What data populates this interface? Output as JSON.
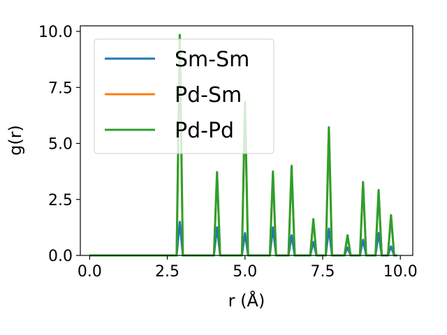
{
  "chart_data": {
    "type": "line",
    "xlabel": "r (Å)",
    "ylabel": "g(r)",
    "xlim": [
      -0.3,
      10.4
    ],
    "ylim": [
      0.0,
      10.25
    ],
    "x_ticks": [
      0.0,
      2.5,
      5.0,
      7.5,
      10.0
    ],
    "x_tick_labels": [
      "0.0",
      "2.5",
      "5.0",
      "7.5",
      "10.0"
    ],
    "y_ticks": [
      0.0,
      2.5,
      5.0,
      7.5,
      10.0
    ],
    "y_tick_labels": [
      "0.0",
      "2.5",
      "5.0",
      "7.5",
      "10.0"
    ],
    "grid": false,
    "legend_position": "upper-left",
    "series": [
      {
        "name": "Sm-Sm",
        "color": "#1f77b4",
        "x": [
          0.0,
          2.8,
          2.9,
          3.0,
          4.0,
          4.1,
          4.2,
          4.9,
          5.0,
          5.1,
          5.8,
          5.9,
          6.0,
          6.4,
          6.5,
          6.6,
          7.1,
          7.2,
          7.3,
          7.6,
          7.7,
          7.8,
          8.2,
          8.3,
          8.4,
          8.7,
          8.8,
          8.9,
          9.2,
          9.3,
          9.4,
          9.6,
          9.7,
          9.8,
          9.9
        ],
        "y": [
          0.0,
          0.0,
          1.5,
          0.0,
          0.0,
          1.25,
          0.0,
          0.0,
          1.0,
          0.0,
          0.0,
          1.25,
          0.0,
          0.0,
          0.9,
          0.0,
          0.0,
          0.6,
          0.0,
          0.0,
          1.2,
          0.0,
          0.0,
          0.35,
          0.0,
          0.0,
          0.7,
          0.0,
          0.0,
          1.0,
          0.0,
          0.0,
          0.4,
          0.0,
          0.0
        ]
      },
      {
        "name": "Pd-Sm",
        "color": "#ff7f0e",
        "x": [
          0.0,
          2.8,
          2.9,
          3.0,
          4.0,
          4.1,
          4.2,
          4.9,
          5.0,
          5.1,
          5.8,
          5.9,
          6.0,
          6.4,
          6.5,
          6.6,
          7.1,
          7.2,
          7.3,
          7.6,
          7.7,
          7.8,
          8.2,
          8.3,
          8.4,
          8.7,
          8.8,
          8.9,
          9.2,
          9.3,
          9.4,
          9.6,
          9.7,
          9.8,
          9.9
        ],
        "y": [
          0.0,
          0.0,
          9.8,
          0.0,
          0.0,
          3.7,
          0.0,
          0.0,
          6.8,
          0.0,
          0.0,
          3.7,
          0.0,
          0.0,
          4.0,
          0.0,
          0.0,
          1.6,
          0.0,
          0.0,
          5.7,
          0.0,
          0.0,
          0.9,
          0.0,
          0.0,
          3.25,
          0.0,
          0.0,
          2.9,
          0.0,
          0.0,
          1.8,
          0.0,
          0.0
        ]
      },
      {
        "name": "Pd-Pd",
        "color": "#2ca02c",
        "x": [
          0.0,
          2.8,
          2.9,
          3.0,
          4.0,
          4.1,
          4.2,
          4.9,
          5.0,
          5.1,
          5.8,
          5.9,
          6.0,
          6.4,
          6.5,
          6.6,
          7.1,
          7.2,
          7.3,
          7.6,
          7.7,
          7.8,
          8.2,
          8.3,
          8.4,
          8.7,
          8.8,
          8.9,
          9.2,
          9.3,
          9.4,
          9.6,
          9.7,
          9.8,
          9.9
        ],
        "y": [
          0.0,
          0.0,
          9.85,
          0.0,
          0.0,
          3.72,
          0.0,
          0.0,
          6.85,
          0.0,
          0.0,
          3.75,
          0.0,
          0.0,
          4.0,
          0.0,
          0.0,
          1.62,
          0.0,
          0.0,
          5.72,
          0.0,
          0.0,
          0.9,
          0.0,
          0.0,
          3.28,
          0.0,
          0.0,
          2.92,
          0.0,
          0.0,
          1.8,
          0.0,
          0.0
        ]
      }
    ]
  }
}
